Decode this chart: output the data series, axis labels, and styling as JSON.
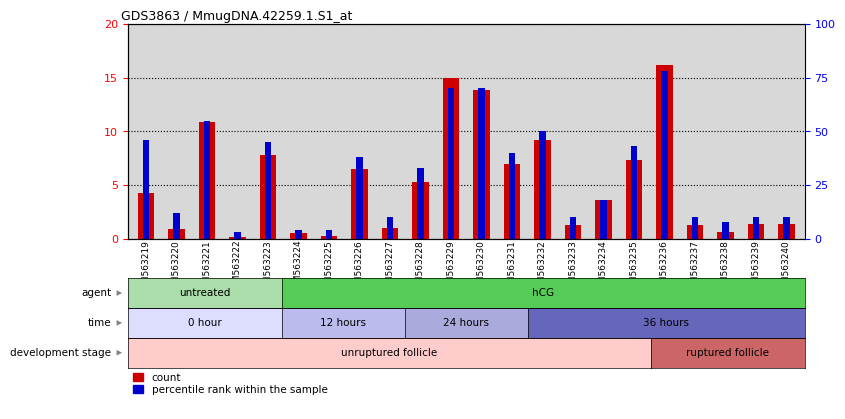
{
  "title": "GDS3863 / MmugDNA.42259.1.S1_at",
  "samples": [
    "GSM563219",
    "GSM563220",
    "GSM563221",
    "GSM563222",
    "GSM563223",
    "GSM563224",
    "GSM563225",
    "GSM563226",
    "GSM563227",
    "GSM563228",
    "GSM563229",
    "GSM563230",
    "GSM563231",
    "GSM563232",
    "GSM563233",
    "GSM563234",
    "GSM563235",
    "GSM563236",
    "GSM563237",
    "GSM563238",
    "GSM563239",
    "GSM563240"
  ],
  "count": [
    4.3,
    0.9,
    10.9,
    0.2,
    7.8,
    0.5,
    0.3,
    6.5,
    1.0,
    5.3,
    15.0,
    13.9,
    7.0,
    9.2,
    1.3,
    3.6,
    7.3,
    16.2,
    1.3,
    0.6,
    1.4,
    1.4
  ],
  "percentile": [
    46,
    12,
    55,
    3,
    45,
    4,
    4,
    38,
    10,
    33,
    70,
    70,
    40,
    50,
    10,
    18,
    43,
    78,
    10,
    8,
    10,
    10
  ],
  "ylim_left": [
    0,
    20
  ],
  "ylim_right": [
    0,
    100
  ],
  "yticks_left": [
    0,
    5,
    10,
    15,
    20
  ],
  "yticks_right": [
    0,
    25,
    50,
    75,
    100
  ],
  "bar_color": "#cc0000",
  "pct_color": "#0000cc",
  "bg_color": "#d8d8d8",
  "label_bg": "#d8d8d8",
  "agent_groups": [
    {
      "label": "untreated",
      "start": 0,
      "end": 5,
      "color": "#aaddaa"
    },
    {
      "label": "hCG",
      "start": 5,
      "end": 22,
      "color": "#55cc55"
    }
  ],
  "time_groups": [
    {
      "label": "0 hour",
      "start": 0,
      "end": 5,
      "color": "#ddddff"
    },
    {
      "label": "12 hours",
      "start": 5,
      "end": 9,
      "color": "#bbbbee"
    },
    {
      "label": "24 hours",
      "start": 9,
      "end": 13,
      "color": "#aaaadd"
    },
    {
      "label": "36 hours",
      "start": 13,
      "end": 22,
      "color": "#6666bb"
    }
  ],
  "dev_groups": [
    {
      "label": "unruptured follicle",
      "start": 0,
      "end": 17,
      "color": "#ffcccc"
    },
    {
      "label": "ruptured follicle",
      "start": 17,
      "end": 22,
      "color": "#cc6666"
    }
  ],
  "row_labels": [
    "agent",
    "time",
    "development stage"
  ],
  "legend_items": [
    "count",
    "percentile rank within the sample"
  ]
}
